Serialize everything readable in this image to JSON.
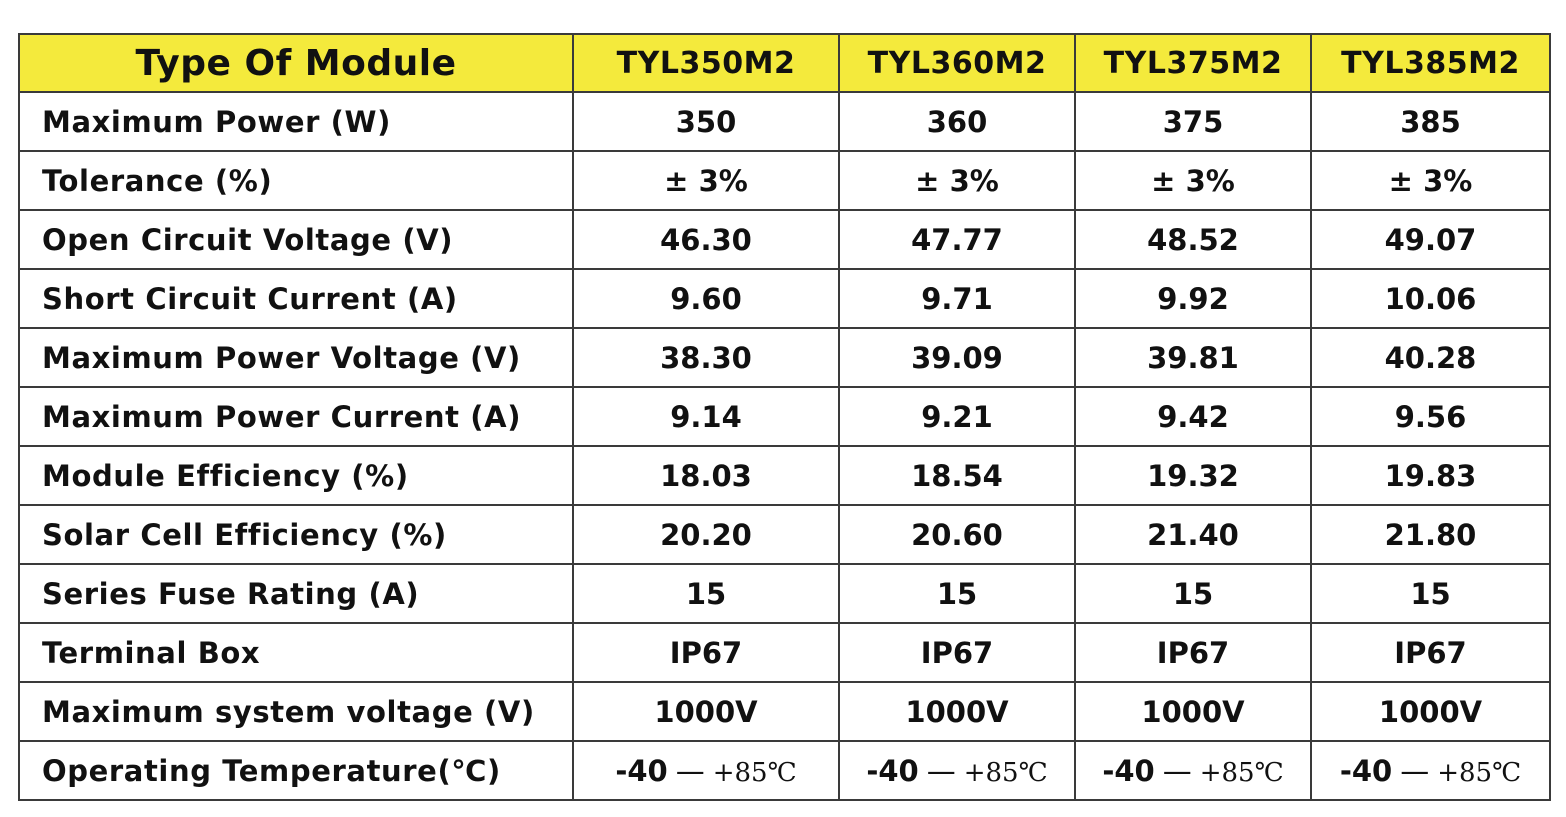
{
  "table": {
    "header_title": "Type Of Module",
    "models": [
      "TYL350M2",
      "TYL360M2",
      "TYL375M2",
      "TYL385M2"
    ],
    "rows": [
      {
        "label": "Maximum Power (W)",
        "values": [
          "350",
          "360",
          "375",
          "385"
        ]
      },
      {
        "label": "Tolerance (%)",
        "values": [
          "± 3%",
          "± 3%",
          "± 3%",
          "± 3%"
        ]
      },
      {
        "label": "Open Circuit Voltage (V)",
        "values": [
          "46.30",
          "47.77",
          "48.52",
          "49.07"
        ]
      },
      {
        "label": "Short Circuit Current (A)",
        "values": [
          "9.60",
          "9.71",
          "9.92",
          "10.06"
        ]
      },
      {
        "label": "Maximum Power Voltage (V)",
        "values": [
          "38.30",
          "39.09",
          "39.81",
          "40.28"
        ]
      },
      {
        "label": "Maximum Power Current (A)",
        "values": [
          "9.14",
          "9.21",
          "9.42",
          "9.56"
        ]
      },
      {
        "label": "Module Efficiency (%)",
        "values": [
          "18.03",
          "18.54",
          "19.32",
          "19.83"
        ]
      },
      {
        "label": "Solar Cell Efficiency (%)",
        "values": [
          "20.20",
          "20.60",
          "21.40",
          "21.80"
        ]
      },
      {
        "label": "Series Fuse Rating (A)",
        "values": [
          "15",
          "15",
          "15",
          "15"
        ]
      },
      {
        "label": "Terminal Box",
        "values": [
          "IP67",
          "IP67",
          "IP67",
          "IP67"
        ]
      },
      {
        "label": "Maximum system voltage (V)",
        "values": [
          "1000V",
          "1000V",
          "1000V",
          "1000V"
        ]
      }
    ],
    "temperature_row": {
      "label": "Operating Temperature(℃)",
      "low": "-40",
      "dash": "—",
      "high": "+85℃"
    }
  },
  "colors": {
    "header_background": "#f4ea3c",
    "border": "#3a3a3a",
    "text": "#111111"
  }
}
